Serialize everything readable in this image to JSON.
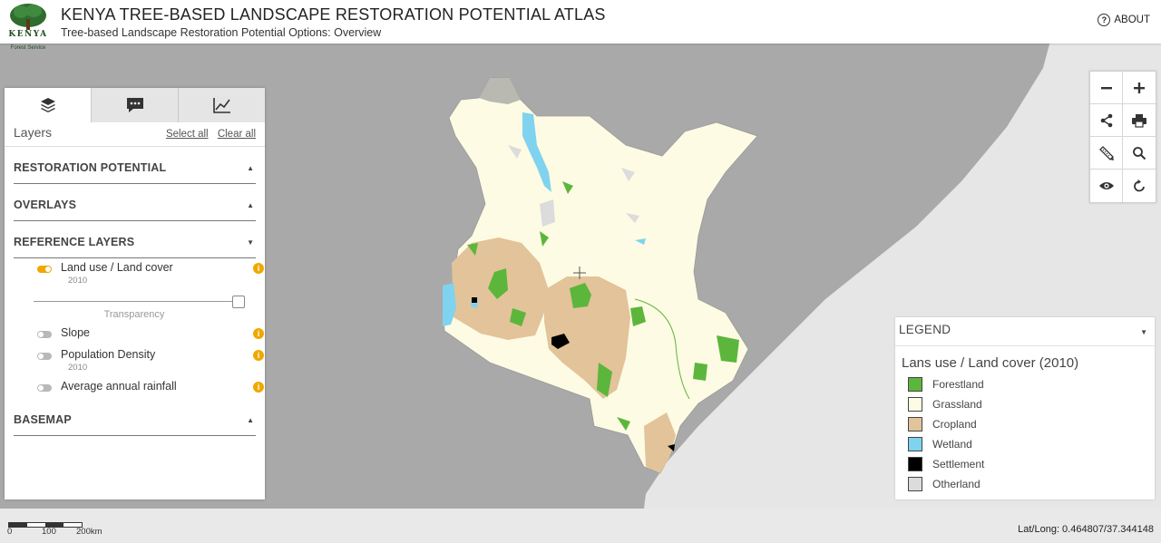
{
  "header": {
    "logo_text": "KENYA",
    "logo_subtext": "Forest Service",
    "title": "KENYA TREE-BASED LANDSCAPE RESTORATION POTENTIAL ATLAS",
    "subtitle": "Tree-based Landscape Restoration Potential Options: Overview",
    "about_label": "ABOUT",
    "about_icon": "question-circle-icon"
  },
  "panel": {
    "tabs": [
      {
        "name": "layers",
        "icon": "layers-icon",
        "active": true
      },
      {
        "name": "comments",
        "icon": "chat-bubble-icon",
        "active": false
      },
      {
        "name": "charts",
        "icon": "line-chart-icon",
        "active": false
      }
    ],
    "title": "Layers",
    "select_all": "Select all",
    "clear_all": "Clear all",
    "sections": [
      {
        "label": "RESTORATION POTENTIAL",
        "expanded": false
      },
      {
        "label": "OVERLAYS",
        "expanded": false
      },
      {
        "label": "REFERENCE LAYERS",
        "expanded": true
      },
      {
        "label": "BASEMAP",
        "expanded": false
      }
    ],
    "layers": [
      {
        "name": "Land use / Land cover",
        "year": "2010",
        "on": true
      },
      {
        "name": "Slope",
        "year": "",
        "on": false
      },
      {
        "name": "Population Density",
        "year": "2010",
        "on": false
      },
      {
        "name": "Average annual rainfall",
        "year": "",
        "on": false
      }
    ],
    "transparency_label": "Transparency",
    "transparency_value": 1.0
  },
  "map_controls": [
    {
      "name": "zoom-out",
      "icon": "minus-icon"
    },
    {
      "name": "zoom-in",
      "icon": "plus-icon"
    },
    {
      "name": "share",
      "icon": "share-icon"
    },
    {
      "name": "print",
      "icon": "printer-icon"
    },
    {
      "name": "measure",
      "icon": "ruler-pencil-icon"
    },
    {
      "name": "search",
      "icon": "magnifier-icon"
    },
    {
      "name": "view",
      "icon": "eye-icon"
    },
    {
      "name": "reset",
      "icon": "refresh-icon"
    }
  ],
  "legend": {
    "header": "LEGEND",
    "title": "Lans use / Land cover (2010)",
    "items": [
      {
        "label": "Forestland",
        "color": "#5cb63c"
      },
      {
        "label": "Grassland",
        "color": "#fdfbe3"
      },
      {
        "label": "Cropland",
        "color": "#e2c39a"
      },
      {
        "label": "Wetland",
        "color": "#7fd3ee"
      },
      {
        "label": "Settlement",
        "color": "#000000"
      },
      {
        "label": "Otherland",
        "color": "#dcdcdc"
      }
    ]
  },
  "scalebar": {
    "labels": [
      "0",
      "100",
      "200km"
    ]
  },
  "coordinates": "Lat/Long: 0.464807/37.344148",
  "colors": {
    "accent": "#f0a800",
    "map_background": "#a9a9a9",
    "land_outside": "#e6e6e6"
  }
}
